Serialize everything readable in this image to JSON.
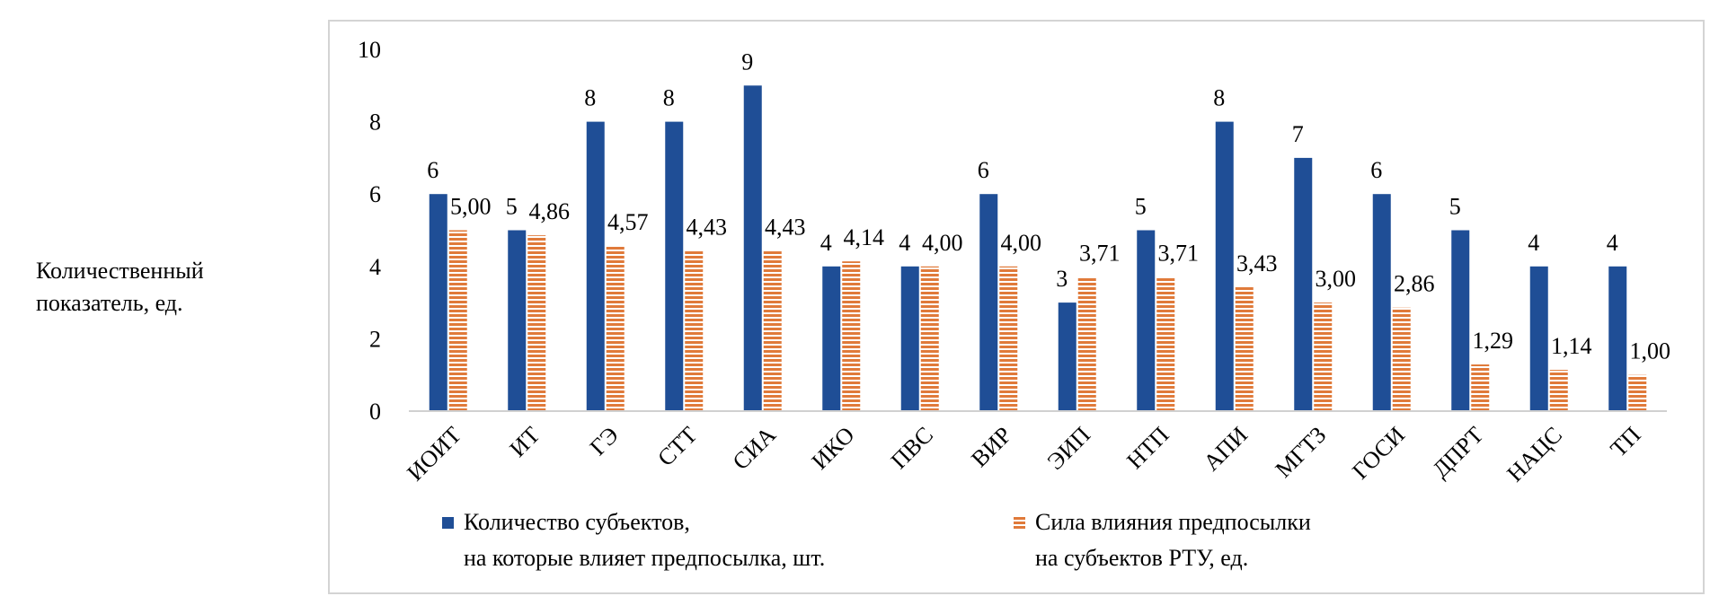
{
  "chart_data": {
    "type": "bar",
    "title": "",
    "xlabel": "",
    "ylabel_lines": [
      "Количественный",
      "показатель, ед."
    ],
    "ylim": [
      0,
      10
    ],
    "yticks": [
      0,
      2,
      4,
      6,
      8,
      10
    ],
    "grid": false,
    "legend_placement": "bottom",
    "categories": [
      "ИОИТ",
      "ИТ",
      "ГЭ",
      "СТТ",
      "СИА",
      "ИКО",
      "ПВС",
      "ВИР",
      "ЭИП",
      "НТП",
      "АПИ",
      "МГТЗ",
      "ГОСИ",
      "ДПРТ",
      "НАЦС",
      "ТП"
    ],
    "series": [
      {
        "name_lines": [
          "Количество субъектов,",
          "на которые влияет предпосылка, шт."
        ],
        "color": "#1f4e96",
        "pattern": "solid",
        "values": [
          6,
          5,
          8,
          8,
          9,
          4,
          4,
          6,
          3,
          5,
          8,
          7,
          6,
          5,
          4,
          4
        ],
        "labels": [
          "6",
          "5",
          "8",
          "8",
          "9",
          "4",
          "4",
          "6",
          "3",
          "5",
          "8",
          "7",
          "6",
          "5",
          "4",
          "4"
        ]
      },
      {
        "name_lines": [
          "Сила влияния предпосылки",
          "на субъектов РТУ, ед."
        ],
        "color": "#e07a3a",
        "pattern": "horizontal-stripes",
        "values": [
          5.0,
          4.86,
          4.57,
          4.43,
          4.43,
          4.14,
          4.0,
          4.0,
          3.71,
          3.71,
          3.43,
          3.0,
          2.86,
          1.29,
          1.14,
          1.0
        ],
        "labels": [
          "5,00",
          "4,86",
          "4,57",
          "4,43",
          "4,43",
          "4,14",
          "4,00",
          "4,00",
          "3,71",
          "3,71",
          "3,43",
          "3,00",
          "2,86",
          "1,29",
          "1,14",
          "1,00"
        ]
      }
    ]
  }
}
